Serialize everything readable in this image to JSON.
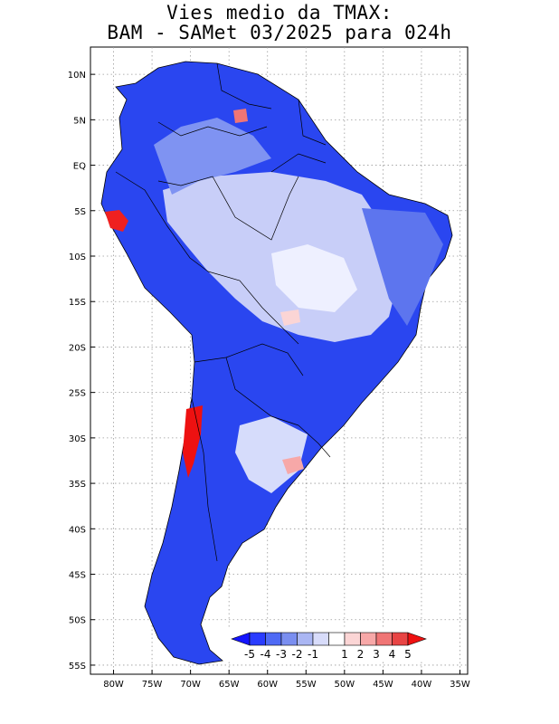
{
  "title": {
    "line1": "Vies medio da TMAX:",
    "line2": "BAM - SAMet 03/2025  para 024h"
  },
  "map": {
    "lat_labels": [
      "10N",
      "5N",
      "EQ",
      "5S",
      "10S",
      "15S",
      "20S",
      "25S",
      "30S",
      "35S",
      "40S",
      "45S",
      "50S",
      "55S"
    ],
    "lon_labels": [
      "80W",
      "75W",
      "70W",
      "65W",
      "60W",
      "55W",
      "50W",
      "45W",
      "40W",
      "35W"
    ],
    "lat_range": [
      -56,
      13
    ],
    "lon_range": [
      -83,
      -34
    ]
  },
  "legend": {
    "labels": [
      "-5",
      "-4",
      "-3",
      "-2",
      "-1",
      "1",
      "2",
      "3",
      "4",
      "5"
    ],
    "colors": [
      "#1414ff",
      "#2a3cff",
      "#4f6af5",
      "#7a8ef0",
      "#aab6f3",
      "#d8dcfa",
      "#ffffff",
      "#fbd5d5",
      "#f7a8a8",
      "#f07575",
      "#e84444",
      "#ee1111"
    ]
  }
}
